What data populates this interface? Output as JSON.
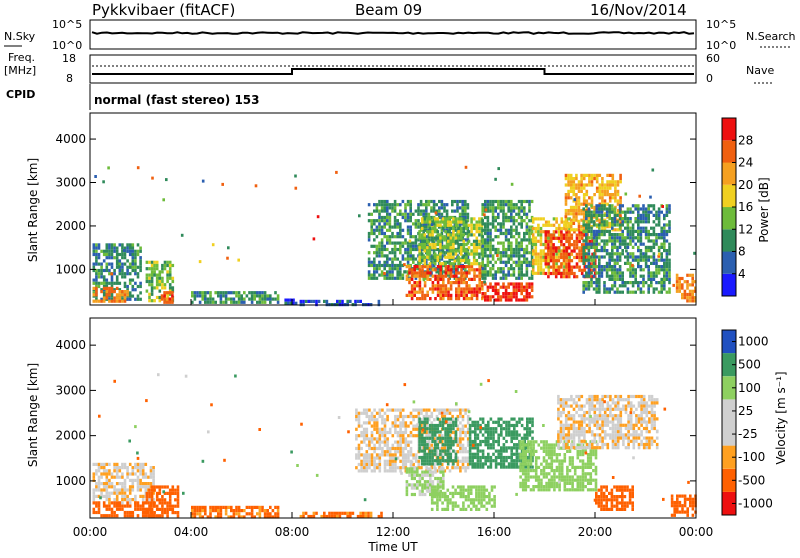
{
  "header": {
    "station": "Pykkvibaer (fitACF)",
    "beam": "Beam 09",
    "date": "16/Nov/2014"
  },
  "nsky": {
    "label": "N.Sky",
    "top": "10^5",
    "bottom": "10^0",
    "right_label": "N.Search"
  },
  "freq": {
    "label_line1": "Freq.",
    "label_line2": "[MHz]",
    "ticks": [
      "18",
      "8"
    ],
    "right_ticks": [
      "60",
      "0"
    ],
    "right_label": "Nave"
  },
  "cpid": {
    "label": "CPID",
    "text": "normal (fast stereo) 153"
  },
  "time_axis": {
    "ticks": [
      "00:00",
      "04:00",
      "08:00",
      "12:00",
      "16:00",
      "20:00",
      "00:00"
    ],
    "label": "Time UT"
  },
  "range_axis": {
    "label": "Slant Range [km]",
    "ticks": [
      "1000",
      "2000",
      "3000",
      "4000"
    ]
  },
  "power_scale": {
    "label": "Power [dB]",
    "ticks": [
      "4",
      "8",
      "12",
      "16",
      "20",
      "24",
      "28"
    ]
  },
  "velocity_scale": {
    "label": "Velocity [m s⁻¹]",
    "ticks": [
      "-1000",
      "-500",
      "-100",
      "-25",
      "25",
      "100",
      "500",
      "1000"
    ]
  },
  "colors": {
    "power": [
      "#1a1aff",
      "#2b5fb0",
      "#2f8a5a",
      "#6dbb3a",
      "#f0d020",
      "#f5a020",
      "#f06010",
      "#ee1010"
    ],
    "velocity": [
      "#ee1010",
      "#ff6000",
      "#ffa020",
      "#cfcfcf",
      "#cfcfcf",
      "#8ed060",
      "#3a9a60",
      "#2050c0"
    ]
  },
  "chart_data": [
    {
      "type": "heatmap",
      "name_panel": "power",
      "x_range_hours": [
        0,
        24
      ],
      "y_range_km": [
        180,
        4600
      ],
      "colorbar_range_db": [
        0,
        32
      ],
      "patches": [
        {
          "t0": 0.1,
          "t1": 2.0,
          "r0": 300,
          "r1": 1600,
          "db": 9
        },
        {
          "t0": 0.1,
          "t1": 1.5,
          "r0": 250,
          "r1": 600,
          "db": 24
        },
        {
          "t0": 2.2,
          "t1": 3.3,
          "r0": 250,
          "r1": 1200,
          "db": 14
        },
        {
          "t0": 2.8,
          "t1": 3.3,
          "r0": 250,
          "r1": 500,
          "db": 26
        },
        {
          "t0": 4.0,
          "t1": 7.5,
          "r0": 220,
          "r1": 500,
          "db": 10
        },
        {
          "t0": 7.7,
          "t1": 8.2,
          "r0": 230,
          "r1": 330,
          "db": 6
        },
        {
          "t0": 8.3,
          "t1": 11.5,
          "r0": 220,
          "r1": 300,
          "db": 5
        },
        {
          "t0": 11.0,
          "t1": 15.0,
          "r0": 800,
          "r1": 2600,
          "db": 10
        },
        {
          "t0": 12.5,
          "t1": 15.5,
          "r0": 300,
          "r1": 1100,
          "db": 26
        },
        {
          "t0": 13.0,
          "t1": 15.5,
          "r0": 1100,
          "r1": 2200,
          "db": 15
        },
        {
          "t0": 15.5,
          "t1": 17.5,
          "r0": 800,
          "r1": 2600,
          "db": 11
        },
        {
          "t0": 15.5,
          "t1": 17.5,
          "r0": 300,
          "r1": 700,
          "db": 28
        },
        {
          "t0": 17.5,
          "t1": 19.0,
          "r0": 900,
          "r1": 2200,
          "db": 18
        },
        {
          "t0": 18.0,
          "t1": 20.0,
          "r0": 800,
          "r1": 1900,
          "db": 27
        },
        {
          "t0": 18.8,
          "t1": 21.0,
          "r0": 1900,
          "r1": 3200,
          "db": 21
        },
        {
          "t0": 19.5,
          "t1": 23.0,
          "r0": 500,
          "r1": 2500,
          "db": 10
        },
        {
          "t0": 23.2,
          "t1": 24.0,
          "r0": 250,
          "r1": 900,
          "db": 24
        }
      ]
    },
    {
      "type": "heatmap",
      "name_panel": "velocity",
      "x_range_hours": [
        0,
        24
      ],
      "y_range_km": [
        180,
        4600
      ],
      "colorbar_range_ms": [
        -1000,
        1000
      ],
      "patches": [
        {
          "t0": 0.1,
          "t1": 2.5,
          "r0": 500,
          "r1": 1400,
          "v": 0
        },
        {
          "t0": 0.1,
          "t1": 2.5,
          "r0": 250,
          "r1": 550,
          "v": -300
        },
        {
          "t0": 2.2,
          "t1": 3.5,
          "r0": 250,
          "r1": 900,
          "v": -300
        },
        {
          "t0": 4.0,
          "t1": 7.5,
          "r0": 220,
          "r1": 450,
          "v": -150
        },
        {
          "t0": 8.3,
          "t1": 11.5,
          "r0": 220,
          "r1": 320,
          "v": -150
        },
        {
          "t0": 10.5,
          "t1": 15.0,
          "r0": 1200,
          "r1": 2600,
          "v": 0
        },
        {
          "t0": 12.5,
          "t1": 14.0,
          "r0": 700,
          "r1": 1300,
          "v": 120
        },
        {
          "t0": 13.0,
          "t1": 14.5,
          "r0": 1400,
          "r1": 2400,
          "v": 900
        },
        {
          "t0": 13.5,
          "t1": 16.0,
          "r0": 400,
          "r1": 900,
          "v": 300
        },
        {
          "t0": 15.0,
          "t1": 17.5,
          "r0": 1300,
          "r1": 2400,
          "v": 700
        },
        {
          "t0": 17.0,
          "t1": 20.0,
          "r0": 800,
          "r1": 1900,
          "v": 300
        },
        {
          "t0": 18.5,
          "t1": 22.5,
          "r0": 1700,
          "r1": 2900,
          "v": 0
        },
        {
          "t0": 20.0,
          "t1": 21.5,
          "r0": 400,
          "r1": 900,
          "v": -200
        },
        {
          "t0": 23.0,
          "t1": 24.0,
          "r0": 250,
          "r1": 700,
          "v": -300
        }
      ]
    }
  ]
}
